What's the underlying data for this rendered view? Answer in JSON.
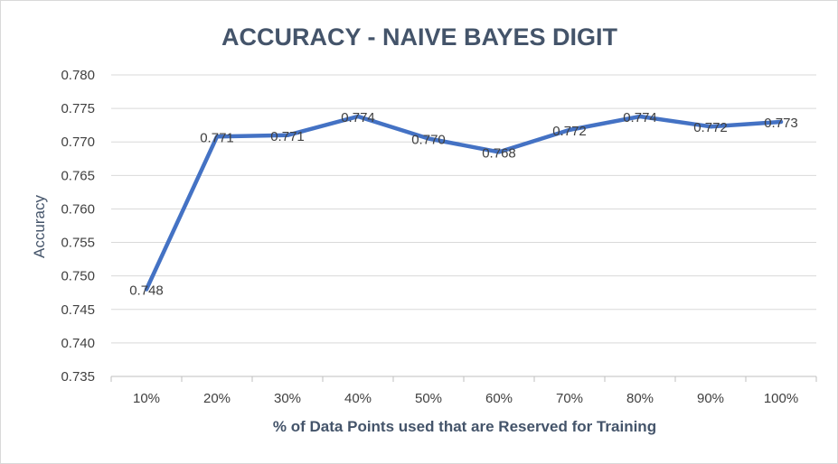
{
  "chart_data": {
    "type": "line",
    "title": "ACCURACY - NAIVE BAYES DIGIT",
    "xlabel": "% of Data Points used that are Reserved for Training",
    "ylabel": "Accuracy",
    "categories": [
      "10%",
      "20%",
      "30%",
      "40%",
      "50%",
      "60%",
      "70%",
      "80%",
      "90%",
      "100%"
    ],
    "series": [
      {
        "values": [
          0.748,
          0.7708,
          0.771,
          0.7738,
          0.7705,
          0.7685,
          0.7718,
          0.7738,
          0.7723,
          0.773
        ],
        "labels": [
          "0.748",
          "0.771",
          "0.771",
          "0.774",
          "0.770",
          "0.768",
          "0.772",
          "0.774",
          "0.772",
          "0.773"
        ],
        "color": "#4472c4"
      }
    ],
    "ylim": [
      0.735,
      0.78
    ],
    "yticks": [
      "0.780",
      "0.775",
      "0.770",
      "0.765",
      "0.760",
      "0.755",
      "0.750",
      "0.745",
      "0.740",
      "0.735"
    ],
    "grid": true,
    "legend": "none"
  }
}
